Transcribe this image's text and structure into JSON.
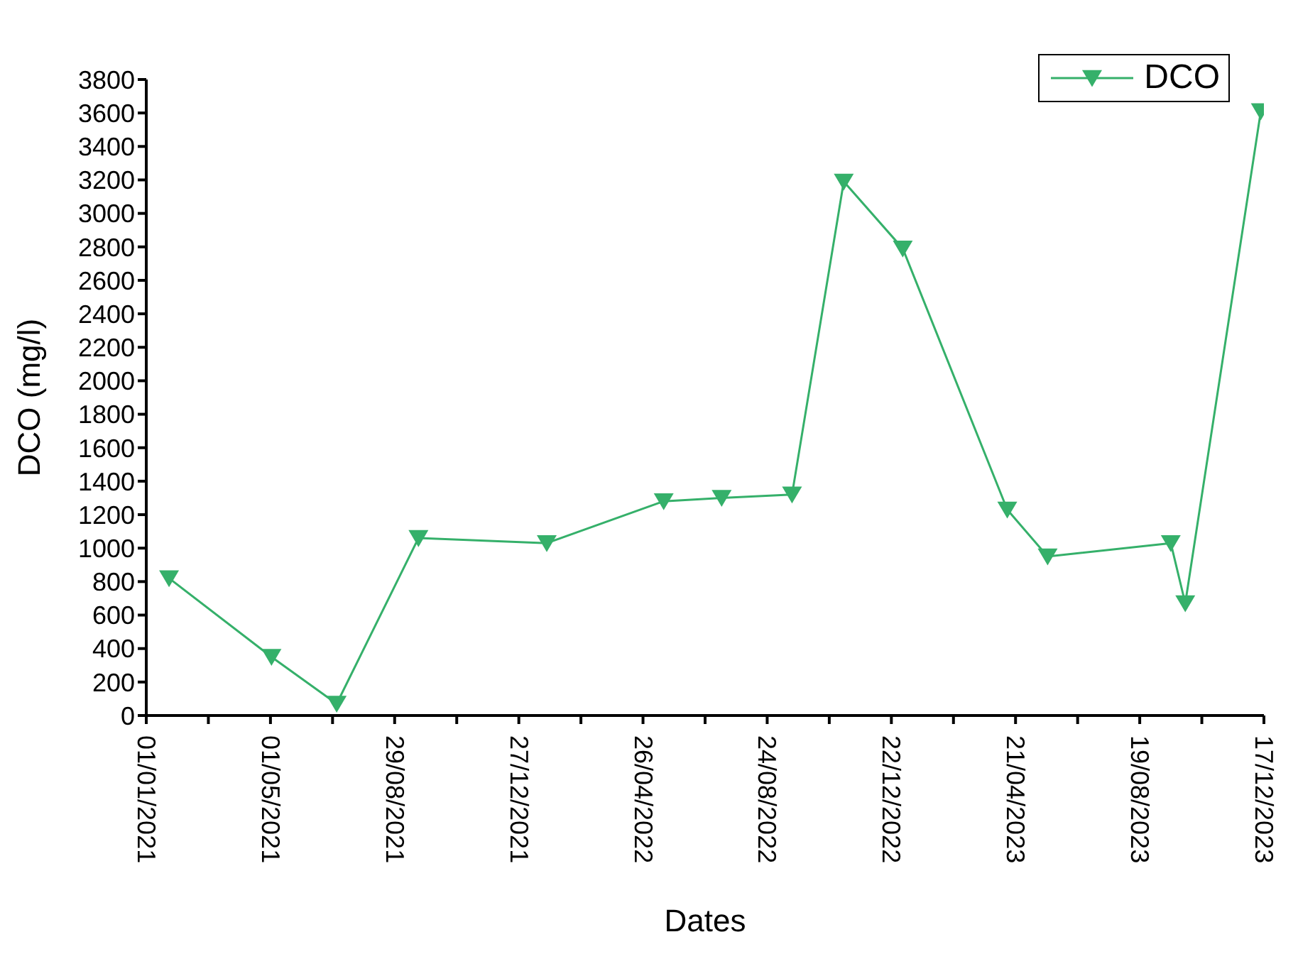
{
  "chart_data": {
    "type": "line",
    "xlabel": "Dates",
    "ylabel": "DCO (mg/l)",
    "x": [
      "2021-01-23",
      "2021-05-02",
      "2021-07-04",
      "2021-09-21",
      "2022-01-23",
      "2022-05-16",
      "2022-07-11",
      "2022-09-17",
      "2022-11-06",
      "2023-01-02",
      "2023-04-13",
      "2023-05-22",
      "2023-09-18",
      "2023-10-02",
      "2023-12-14"
    ],
    "series": [
      {
        "name": "DCO",
        "color": "#35b06a",
        "values": [
          820,
          350,
          70,
          1060,
          1030,
          1280,
          1300,
          1320,
          3190,
          2790,
          1230,
          950,
          1030,
          670,
          3610
        ]
      }
    ],
    "xlim": [
      "2021-01-01",
      "2023-12-17"
    ],
    "xticks": [
      {
        "value": "2021-01-01",
        "label": "01/01/2021"
      },
      {
        "value": "2021-03-02",
        "label": null
      },
      {
        "value": "2021-05-01",
        "label": "01/05/2021"
      },
      {
        "value": "2021-06-30",
        "label": null
      },
      {
        "value": "2021-08-29",
        "label": "29/08/2021"
      },
      {
        "value": "2021-10-28",
        "label": null
      },
      {
        "value": "2021-12-27",
        "label": "27/12/2021"
      },
      {
        "value": "2022-02-25",
        "label": null
      },
      {
        "value": "2022-04-26",
        "label": "26/04/2022"
      },
      {
        "value": "2022-06-25",
        "label": null
      },
      {
        "value": "2022-08-24",
        "label": "24/08/2022"
      },
      {
        "value": "2022-10-23",
        "label": null
      },
      {
        "value": "2022-12-22",
        "label": "22/12/2022"
      },
      {
        "value": "2023-02-20",
        "label": null
      },
      {
        "value": "2023-04-21",
        "label": "21/04/2023"
      },
      {
        "value": "2023-06-20",
        "label": null
      },
      {
        "value": "2023-08-19",
        "label": "19/08/2023"
      },
      {
        "value": "2023-10-18",
        "label": null
      },
      {
        "value": "2023-12-17",
        "label": "17/12/2023"
      }
    ],
    "ylim": [
      0,
      3800
    ],
    "yticks": [
      0,
      200,
      400,
      600,
      800,
      1000,
      1200,
      1400,
      1600,
      1800,
      2000,
      2200,
      2400,
      2600,
      2800,
      3000,
      3200,
      3400,
      3600,
      3800
    ],
    "grid": false,
    "legend": "top right",
    "marker": "triangle",
    "line_style": "solid"
  }
}
